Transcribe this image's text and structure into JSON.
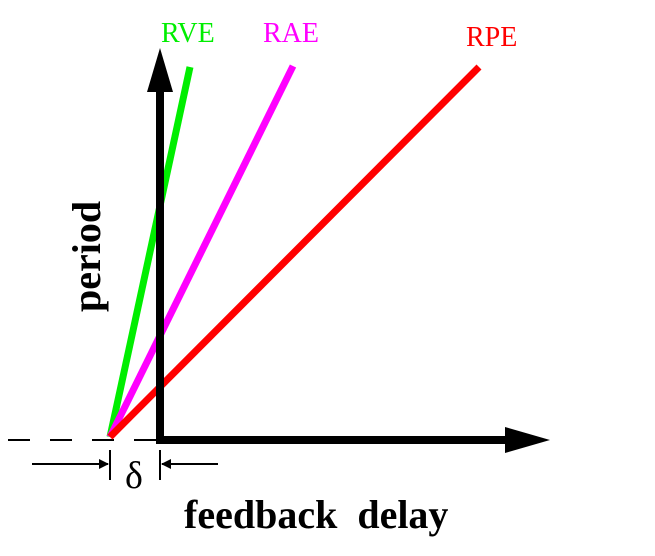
{
  "lines": [
    {
      "label": "RVE",
      "color": "#00ee00"
    },
    {
      "label": "RAE",
      "color": "#ff00ff"
    },
    {
      "label": "RPE",
      "color": "#ff0000"
    }
  ],
  "axes": {
    "x_title": "feedback  delay",
    "y_title": "period",
    "color": "#000000"
  },
  "offset_symbol": "δ"
}
